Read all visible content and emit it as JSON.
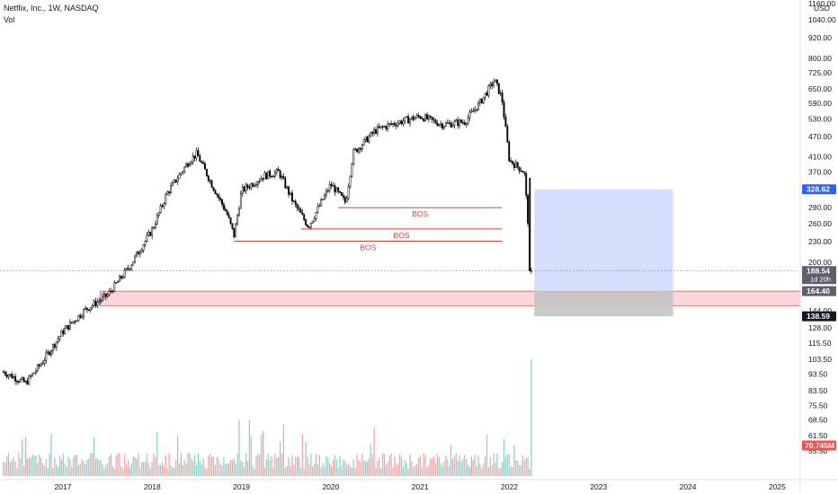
{
  "header": {
    "symbol_line": "Netflix, Inc., 1W, NASDAQ",
    "indicator": "Vol"
  },
  "colors": {
    "up": "#26a69a",
    "down": "#ef5350",
    "candle": "#000000",
    "bos": "#e53935",
    "zone_fill": "#f9c9cf",
    "target_fill": "#cfdcfc",
    "stop_fill": "#c4c4c4",
    "price_tag_blue": "#2962ff",
    "price_tag_dark": "#131722",
    "price_tag_gray": "#5d606b",
    "volume_tag": "#ef5350"
  },
  "chart_data": {
    "type": "candlestick",
    "title": "Netflix, Inc., 1W, NASDAQ",
    "y_scale": "log",
    "y_axis": {
      "unit": "USD",
      "ticks": [
        "1160.00",
        "1040.00",
        "920.00",
        "800.00",
        "725.00",
        "650.00",
        "590.00",
        "530.00",
        "470.00",
        "410.00",
        "370.00",
        "290.00",
        "260.00",
        "230.00",
        "200.00",
        "180.00",
        "144.00",
        "128.00",
        "115.50",
        "103.50",
        "93.50",
        "83.50",
        "75.50",
        "68.50",
        "61.50",
        "55.50"
      ],
      "range": [
        52,
        1180
      ]
    },
    "x_axis": {
      "ticks": [
        "2017",
        "2018",
        "2019",
        "2020",
        "2021",
        "2022",
        "2023",
        "2024",
        "2025"
      ],
      "range": [
        "2016-05",
        "2025-07"
      ]
    },
    "price_path": [
      [
        "2016-05",
        95
      ],
      [
        "2016-08",
        88
      ],
      [
        "2016-10",
        100
      ],
      [
        "2017-01",
        125
      ],
      [
        "2017-04",
        145
      ],
      [
        "2017-07",
        160
      ],
      [
        "2017-10",
        195
      ],
      [
        "2018-01",
        250
      ],
      [
        "2018-03",
        320
      ],
      [
        "2018-06",
        400
      ],
      [
        "2018-07",
        418
      ],
      [
        "2018-09",
        340
      ],
      [
        "2018-11",
        280
      ],
      [
        "2018-12",
        240
      ],
      [
        "2019-01",
        325
      ],
      [
        "2019-04",
        360
      ],
      [
        "2019-06",
        370
      ],
      [
        "2019-08",
        300
      ],
      [
        "2019-10",
        255
      ],
      [
        "2020-01",
        340
      ],
      [
        "2020-03",
        300
      ],
      [
        "2020-04",
        420
      ],
      [
        "2020-07",
        490
      ],
      [
        "2020-09",
        510
      ],
      [
        "2021-01",
        540
      ],
      [
        "2021-04",
        510
      ],
      [
        "2021-07",
        520
      ],
      [
        "2021-09",
        590
      ],
      [
        "2021-11",
        690
      ],
      [
        "2021-12",
        610
      ],
      [
        "2022-01",
        400
      ],
      [
        "2022-03",
        370
      ],
      [
        "2022-04",
        188.54
      ]
    ],
    "volume": {
      "unit": "M",
      "last": "70.745M",
      "spike_date": "2022-04"
    },
    "annotations": {
      "bos_lines": [
        {
          "label": "BOS",
          "price": 290.0,
          "from": "2020-02",
          "to": "2021-12"
        },
        {
          "label": "BOS",
          "price": 251.0,
          "from": "2019-09",
          "to": "2021-12"
        },
        {
          "label": "BOS",
          "price": 231.0,
          "from": "2018-12",
          "to": "2021-12"
        }
      ],
      "demand_zone": {
        "top": 164.4,
        "bottom": 149.0,
        "from": "2017-06"
      },
      "position": {
        "entry": 164.4,
        "target": 328.62,
        "stop": 138.59,
        "from": "2022-04",
        "to": "2023-11"
      }
    },
    "price_labels": {
      "target": "328.62",
      "last": "188.54",
      "countdown": "1d 20h",
      "entry": "164.40",
      "stop": "138.59",
      "volume": "70.745M"
    }
  }
}
